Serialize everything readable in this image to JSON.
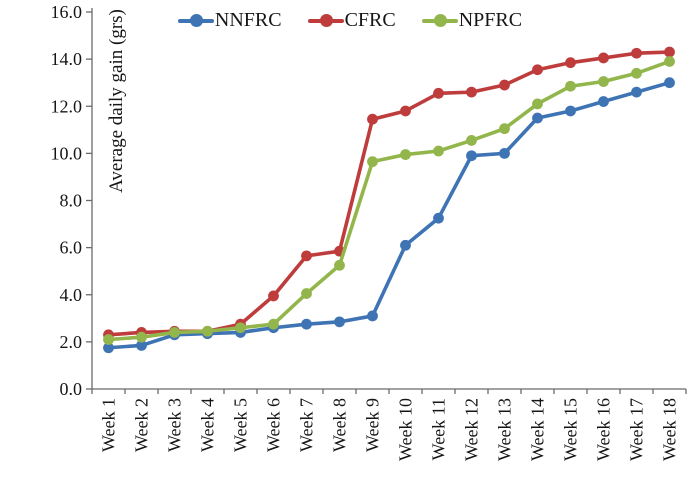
{
  "figure": {
    "background": "#ffffff"
  },
  "chart_data": {
    "type": "line",
    "title": "",
    "xlabel": "",
    "ylabel": "Average daily gain (grs)",
    "ylim": [
      0,
      16
    ],
    "ytick_step": 2,
    "ytick_decimals": 1,
    "grid": false,
    "legend_position": "top-center",
    "axis_color": "#6b6b6b",
    "tick_label_color": "#161616",
    "categories": [
      "Week 1",
      "Week 2",
      "Week 3",
      "Week 4",
      "Week 5",
      "Week 6",
      "Week 7",
      "Week 8",
      "Week 9",
      "Week 10",
      "Week 11",
      "Week 12",
      "Week 13",
      "Week 14",
      "Week 15",
      "Week 16",
      "Week 17",
      "Week 18"
    ],
    "series": [
      {
        "name": "NNFRC",
        "color": "#3E74B4",
        "values": [
          1.75,
          1.85,
          2.3,
          2.35,
          2.4,
          2.6,
          2.75,
          2.85,
          3.1,
          6.1,
          7.25,
          9.9,
          10.0,
          11.5,
          11.8,
          12.2,
          12.6,
          13.0
        ]
      },
      {
        "name": "CFRC",
        "color": "#BE3D3C",
        "values": [
          2.3,
          2.4,
          2.45,
          2.45,
          2.75,
          3.95,
          5.65,
          5.85,
          11.45,
          11.8,
          12.55,
          12.6,
          12.9,
          13.55,
          13.85,
          14.05,
          14.25,
          14.3
        ]
      },
      {
        "name": "NPFRC",
        "color": "#92B64C",
        "values": [
          2.1,
          2.2,
          2.4,
          2.45,
          2.6,
          2.75,
          4.05,
          5.25,
          9.65,
          9.95,
          10.1,
          10.55,
          11.05,
          12.1,
          12.85,
          13.05,
          13.4,
          13.9
        ]
      }
    ]
  }
}
